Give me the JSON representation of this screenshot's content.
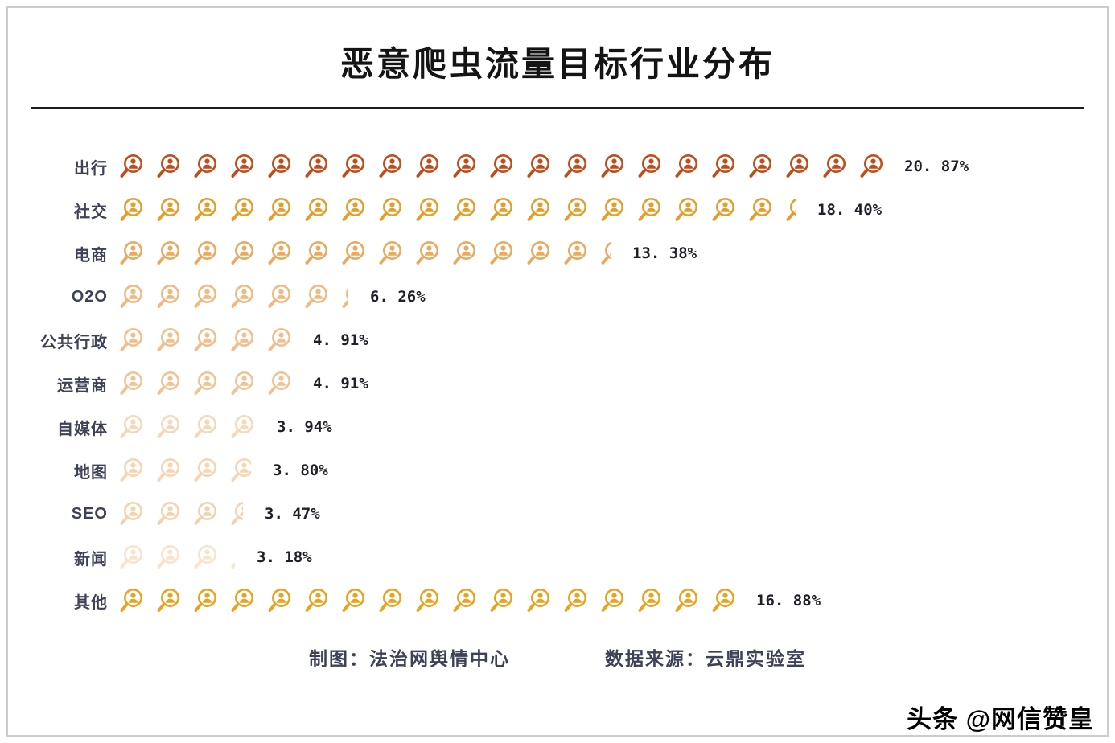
{
  "chart_data": {
    "type": "bar",
    "subtype": "pictogram",
    "title": "恶意爬虫流量目标行业分布",
    "icon": "magnifier-person-icon",
    "unit_per_icon_percent": 1,
    "categories": [
      "出行",
      "社交",
      "电商",
      "O2O",
      "公共行政",
      "运营商",
      "自媒体",
      "地图",
      "SEO",
      "新闻",
      "其他"
    ],
    "values": [
      20.87,
      18.4,
      13.38,
      6.26,
      4.91,
      4.91,
      3.94,
      3.8,
      3.47,
      3.18,
      16.88
    ],
    "value_labels": [
      "20. 87%",
      "18. 40%",
      "13. 38%",
      "6. 26%",
      "4. 91%",
      "4. 91%",
      "3. 94%",
      "3. 80%",
      "3. 47%",
      "3. 18%",
      "16. 88%"
    ],
    "colors": [
      "#bf4d1b",
      "#e59d2c",
      "#eaa95e",
      "#efb97f",
      "#f0bf8c",
      "#f2c392",
      "#f6d7b6",
      "#f6d5b1",
      "#f4d2ab",
      "#f9e4cb",
      "#eaa31e"
    ],
    "xlabel": "",
    "ylabel": "",
    "legend": "none",
    "grid": "off",
    "value_suffix": "%"
  },
  "footer": {
    "credit": "制图：法治网舆情中心",
    "source": "数据来源：云鼎实验室"
  },
  "watermark": "头条 @网信赞皇"
}
